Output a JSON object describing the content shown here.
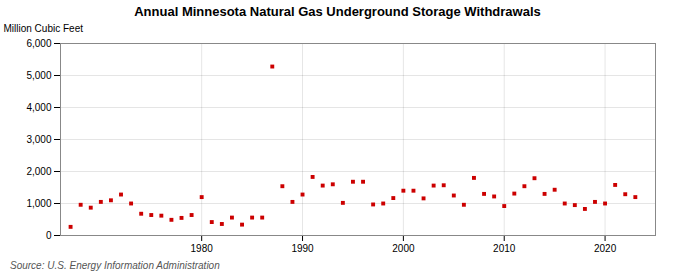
{
  "chart_data": {
    "type": "scatter",
    "title": "Annual Minnesota Natural  Gas Underground Storage Withdrawals",
    "ylabel": "Million Cubic Feet",
    "source": "Source: U.S. Energy Information Administration",
    "x": [
      1967,
      1968,
      1969,
      1970,
      1971,
      1972,
      1973,
      1974,
      1975,
      1976,
      1977,
      1978,
      1979,
      1980,
      1981,
      1982,
      1983,
      1984,
      1985,
      1986,
      1987,
      1988,
      1989,
      1990,
      1991,
      1992,
      1993,
      1994,
      1995,
      1996,
      1997,
      1998,
      1999,
      2000,
      2001,
      2002,
      2003,
      2004,
      2005,
      2006,
      2007,
      2008,
      2009,
      2010,
      2011,
      2012,
      2013,
      2014,
      2015,
      2016,
      2017,
      2018,
      2019,
      2020,
      2021,
      2022,
      2023
    ],
    "values": [
      270,
      960,
      870,
      1050,
      1100,
      1280,
      1000,
      680,
      640,
      620,
      490,
      550,
      640,
      1200,
      420,
      360,
      560,
      340,
      560,
      560,
      5280,
      1540,
      1050,
      1280,
      1830,
      1560,
      1600,
      1020,
      1680,
      1680,
      970,
      1000,
      1170,
      1400,
      1400,
      1160,
      1560,
      1570,
      1250,
      960,
      1800,
      1300,
      1220,
      920,
      1310,
      1540,
      1790,
      1300,
      1430,
      1000,
      950,
      830,
      1050,
      1000,
      1580,
      1290,
      1200
    ],
    "color": "#cc0000",
    "marker": "square",
    "xlim": [
      1966,
      2025
    ],
    "xticks": [
      1980,
      1990,
      2000,
      2010,
      2020
    ],
    "ylim": [
      0,
      6000
    ],
    "yticks": [
      0,
      {
        "value": 1000,
        "label": "1,000"
      },
      {
        "value": 2000,
        "label": "2,000"
      },
      {
        "value": 3000,
        "label": "3,000"
      },
      {
        "value": 4000,
        "label": "4,000"
      },
      {
        "value": 5000,
        "label": "5,000"
      },
      {
        "value": 6000,
        "label": "6,000"
      }
    ],
    "grid": true
  }
}
